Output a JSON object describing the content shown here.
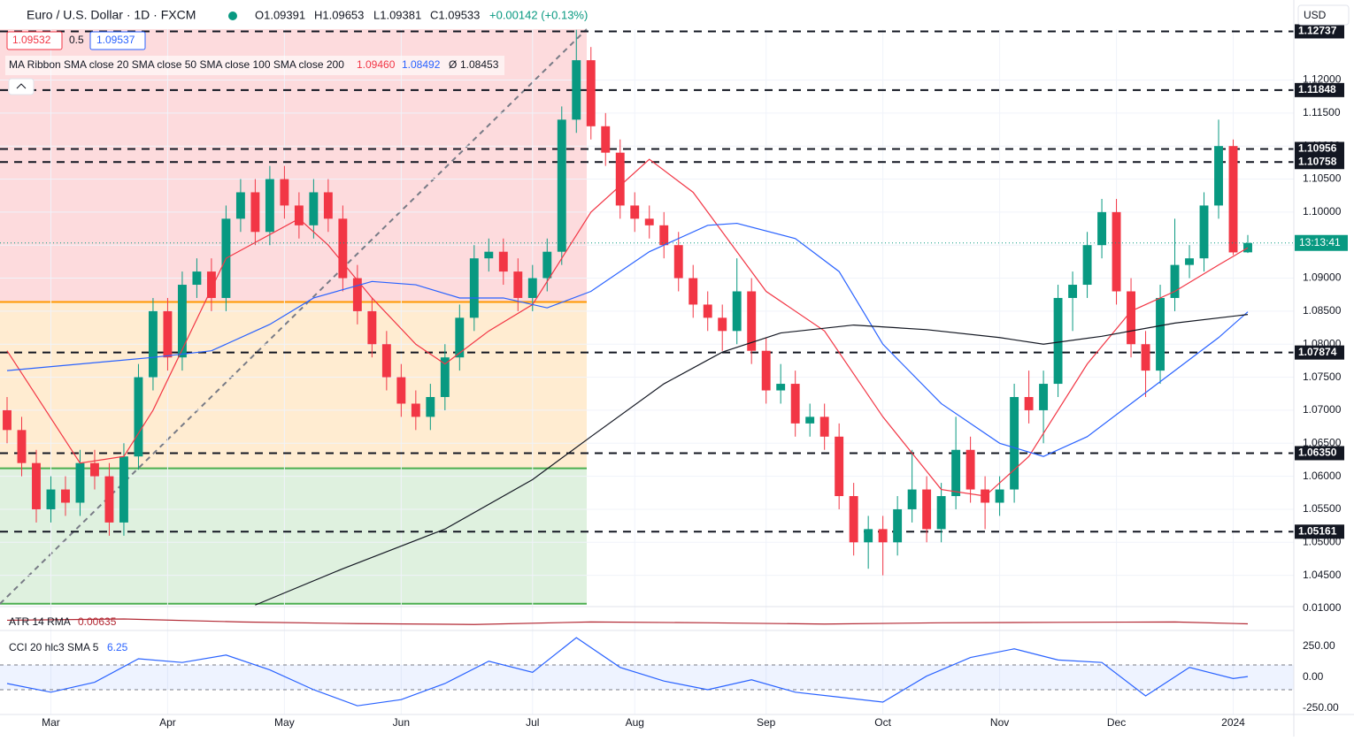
{
  "chart_data": {
    "type": "candlestick",
    "header": {
      "symbol": "Euro / U.S. Dollar · 1D · FXCM",
      "open": "O1.09391",
      "high": "H1.09653",
      "low": "L1.09381",
      "close": "C1.09533",
      "change": "+0.00142 (+0.13%)",
      "tool_labels": [
        "1.09532",
        "0.5",
        "1.09537"
      ],
      "ma_ribbon": "MA Ribbon SMA close 20 SMA close 50 SMA close 100 SMA close 200",
      "ma_values": [
        "1.09460",
        "1.08492",
        "Ø",
        "1.08453"
      ],
      "currency": "USD",
      "countdown": "13:13:41"
    },
    "categories": [
      null,
      null,
      null,
      "Mar",
      null,
      null,
      null,
      null,
      null,
      null,
      null,
      "Apr",
      null,
      null,
      null,
      null,
      null,
      null,
      null,
      "May",
      null,
      null,
      null,
      null,
      null,
      null,
      null,
      "Jun",
      null,
      null,
      null,
      null,
      null,
      null,
      null,
      null,
      "Jul",
      null,
      null,
      null,
      null,
      null,
      null,
      "Aug",
      null,
      null,
      null,
      null,
      null,
      null,
      null,
      null,
      "Sep",
      null,
      null,
      null,
      null,
      null,
      null,
      null,
      "Oct",
      null,
      null,
      null,
      null,
      null,
      null,
      null,
      "Nov",
      null,
      null,
      null,
      null,
      null,
      null,
      null,
      "Dec",
      null,
      null,
      null,
      null,
      null,
      null,
      null,
      "2024",
      null
    ],
    "ohlc": [
      [
        1.07,
        1.072,
        1.065,
        1.067
      ],
      [
        1.067,
        1.069,
        1.06,
        1.062
      ],
      [
        1.062,
        1.064,
        1.053,
        1.055
      ],
      [
        1.055,
        1.06,
        1.053,
        1.058
      ],
      [
        1.058,
        1.06,
        1.054,
        1.056
      ],
      [
        1.056,
        1.064,
        1.054,
        1.062
      ],
      [
        1.062,
        1.064,
        1.058,
        1.06
      ],
      [
        1.06,
        1.062,
        1.051,
        1.053
      ],
      [
        1.053,
        1.065,
        1.051,
        1.063
      ],
      [
        1.063,
        1.077,
        1.061,
        1.075
      ],
      [
        1.075,
        1.087,
        1.073,
        1.085
      ],
      [
        1.085,
        1.087,
        1.076,
        1.078
      ],
      [
        1.078,
        1.091,
        1.076,
        1.089
      ],
      [
        1.089,
        1.093,
        1.087,
        1.091
      ],
      [
        1.091,
        1.093,
        1.085,
        1.087
      ],
      [
        1.087,
        1.101,
        1.085,
        1.099
      ],
      [
        1.099,
        1.105,
        1.097,
        1.103
      ],
      [
        1.103,
        1.105,
        1.095,
        1.097
      ],
      [
        1.097,
        1.107,
        1.095,
        1.105
      ],
      [
        1.105,
        1.107,
        1.099,
        1.101
      ],
      [
        1.101,
        1.103,
        1.096,
        1.098
      ],
      [
        1.098,
        1.105,
        1.096,
        1.103
      ],
      [
        1.103,
        1.105,
        1.097,
        1.099
      ],
      [
        1.099,
        1.101,
        1.088,
        1.09
      ],
      [
        1.09,
        1.092,
        1.083,
        1.085
      ],
      [
        1.085,
        1.087,
        1.078,
        1.08
      ],
      [
        1.08,
        1.082,
        1.073,
        1.075
      ],
      [
        1.075,
        1.077,
        1.069,
        1.071
      ],
      [
        1.071,
        1.073,
        1.067,
        1.069
      ],
      [
        1.069,
        1.074,
        1.067,
        1.072
      ],
      [
        1.072,
        1.08,
        1.07,
        1.078
      ],
      [
        1.078,
        1.086,
        1.076,
        1.084
      ],
      [
        1.084,
        1.095,
        1.082,
        1.093
      ],
      [
        1.093,
        1.096,
        1.091,
        1.094
      ],
      [
        1.094,
        1.096,
        1.089,
        1.091
      ],
      [
        1.091,
        1.093,
        1.085,
        1.087
      ],
      [
        1.087,
        1.092,
        1.085,
        1.09
      ],
      [
        1.09,
        1.096,
        1.088,
        1.094
      ],
      [
        1.094,
        1.116,
        1.092,
        1.114
      ],
      [
        1.114,
        1.1276,
        1.112,
        1.123
      ],
      [
        1.123,
        1.125,
        1.111,
        1.113
      ],
      [
        1.113,
        1.115,
        1.107,
        1.109
      ],
      [
        1.109,
        1.111,
        1.099,
        1.101
      ],
      [
        1.101,
        1.103,
        1.097,
        1.099
      ],
      [
        1.099,
        1.101,
        1.096,
        1.098
      ],
      [
        1.098,
        1.1,
        1.093,
        1.095
      ],
      [
        1.095,
        1.097,
        1.088,
        1.09
      ],
      [
        1.09,
        1.092,
        1.084,
        1.086
      ],
      [
        1.086,
        1.088,
        1.082,
        1.084
      ],
      [
        1.084,
        1.086,
        1.079,
        1.082
      ],
      [
        1.082,
        1.093,
        1.08,
        1.088
      ],
      [
        1.088,
        1.09,
        1.077,
        1.079
      ],
      [
        1.079,
        1.081,
        1.071,
        1.073
      ],
      [
        1.073,
        1.077,
        1.071,
        1.074
      ],
      [
        1.074,
        1.076,
        1.066,
        1.068
      ],
      [
        1.068,
        1.071,
        1.066,
        1.069
      ],
      [
        1.069,
        1.071,
        1.064,
        1.066
      ],
      [
        1.066,
        1.068,
        1.055,
        1.057
      ],
      [
        1.057,
        1.059,
        1.048,
        1.05
      ],
      [
        1.05,
        1.054,
        1.046,
        1.052
      ],
      [
        1.052,
        1.054,
        1.045,
        1.05
      ],
      [
        1.05,
        1.057,
        1.048,
        1.055
      ],
      [
        1.055,
        1.064,
        1.053,
        1.058
      ],
      [
        1.058,
        1.06,
        1.05,
        1.052
      ],
      [
        1.052,
        1.059,
        1.05,
        1.057
      ],
      [
        1.057,
        1.069,
        1.055,
        1.064
      ],
      [
        1.064,
        1.066,
        1.056,
        1.058
      ],
      [
        1.058,
        1.06,
        1.052,
        1.056
      ],
      [
        1.056,
        1.06,
        1.054,
        1.058
      ],
      [
        1.058,
        1.074,
        1.056,
        1.072
      ],
      [
        1.072,
        1.076,
        1.068,
        1.07
      ],
      [
        1.07,
        1.076,
        1.065,
        1.074
      ],
      [
        1.074,
        1.089,
        1.072,
        1.087
      ],
      [
        1.087,
        1.091,
        1.082,
        1.089
      ],
      [
        1.089,
        1.097,
        1.087,
        1.095
      ],
      [
        1.095,
        1.102,
        1.093,
        1.1
      ],
      [
        1.1,
        1.102,
        1.086,
        1.088
      ],
      [
        1.088,
        1.09,
        1.078,
        1.08
      ],
      [
        1.08,
        1.082,
        1.072,
        1.076
      ],
      [
        1.076,
        1.089,
        1.074,
        1.087
      ],
      [
        1.087,
        1.099,
        1.085,
        1.092
      ],
      [
        1.092,
        1.095,
        1.09,
        1.093
      ],
      [
        1.093,
        1.103,
        1.091,
        1.101
      ],
      [
        1.101,
        1.114,
        1.099,
        1.11
      ],
      [
        1.11,
        1.111,
        1.0935,
        1.0939
      ],
      [
        1.09391,
        1.09653,
        1.09381,
        1.09533
      ]
    ],
    "up_color": "#089981",
    "down_color": "#f23645",
    "ylim": [
      1.0404,
      1.1277
    ],
    "yticks": [
      {
        "value": 1.045,
        "label": "1.04500"
      },
      {
        "value": 1.05,
        "label": "1.05000"
      },
      {
        "value": 1.055,
        "label": "1.05500"
      },
      {
        "value": 1.06,
        "label": "1.06000"
      },
      {
        "value": 1.065,
        "label": "1.06500"
      },
      {
        "value": 1.07,
        "label": "1.07000"
      },
      {
        "value": 1.075,
        "label": "1.07500"
      },
      {
        "value": 1.08,
        "label": "1.08000"
      },
      {
        "value": 1.085,
        "label": "1.08500"
      },
      {
        "value": 1.09,
        "label": "1.09000"
      },
      {
        "value": 1.095,
        "label": "1.09500"
      },
      {
        "value": 1.1,
        "label": "1.10000"
      },
      {
        "value": 1.105,
        "label": "1.10500"
      },
      {
        "value": 1.11,
        "label": "1.11000"
      },
      {
        "value": 1.115,
        "label": "1.11500"
      },
      {
        "value": 1.12,
        "label": "1.12000"
      }
    ],
    "levels": [
      {
        "value": 1.12737,
        "label": "1.12737"
      },
      {
        "value": 1.11848,
        "label": "1.11848"
      },
      {
        "value": 1.10956,
        "label": "1.10956"
      },
      {
        "value": 1.10758,
        "label": "1.10758"
      },
      {
        "value": 1.07874,
        "label": "1.07874"
      },
      {
        "value": 1.0635,
        "label": "1.06350"
      },
      {
        "value": 1.05161,
        "label": "1.05161"
      }
    ],
    "fib": [
      {
        "value": 1.1277,
        "color": "#f23645"
      },
      {
        "value": 1.0864,
        "color": "#ff9800"
      },
      {
        "value": 1.0612,
        "color": "#4caf50"
      },
      {
        "value": 1.0407,
        "color": "#4caf50"
      }
    ],
    "series": [
      {
        "name": "SMA 20",
        "color": "#f23645",
        "x": [
          0,
          5,
          8,
          10,
          15,
          20,
          22,
          25,
          28,
          30,
          33,
          36,
          40,
          44,
          47,
          52,
          56,
          60,
          64,
          67,
          70,
          74,
          77,
          80,
          83,
          85
        ],
        "values": [
          1.079,
          1.062,
          1.063,
          1.07,
          1.093,
          1.099,
          1.095,
          1.087,
          1.08,
          1.077,
          1.082,
          1.086,
          1.1,
          1.108,
          1.103,
          1.088,
          1.082,
          1.069,
          1.058,
          1.057,
          1.063,
          1.077,
          1.085,
          1.088,
          1.092,
          1.0946
        ]
      },
      {
        "name": "SMA 50",
        "color": "#2962ff",
        "x": [
          0,
          10,
          14,
          18,
          21,
          25,
          28,
          31,
          34,
          37,
          40,
          44,
          48,
          50,
          54,
          57,
          60,
          64,
          68,
          71,
          74,
          77,
          80,
          83,
          85
        ],
        "values": [
          1.076,
          1.078,
          1.079,
          1.083,
          1.087,
          1.0895,
          1.089,
          1.087,
          1.087,
          1.0855,
          1.088,
          1.094,
          1.098,
          1.0983,
          1.096,
          1.091,
          1.08,
          1.071,
          1.065,
          1.063,
          1.066,
          1.071,
          1.076,
          1.081,
          1.0849
        ]
      },
      {
        "name": "SMA 200",
        "color": "#131722",
        "x": [
          17,
          23,
          30,
          36,
          40,
          45,
          49,
          53,
          58,
          63,
          68,
          71,
          75,
          80,
          85
        ],
        "values": [
          1.0405,
          1.046,
          1.052,
          1.0595,
          1.066,
          1.074,
          1.0788,
          1.0817,
          1.0829,
          1.0822,
          1.081,
          1.08,
          1.0812,
          1.0832,
          1.0845
        ]
      }
    ],
    "atr": {
      "title": "ATR 14 RMA",
      "last": "0.00635",
      "color": "#b22833",
      "x": [
        0,
        8,
        16,
        24,
        32,
        40,
        48,
        56,
        64,
        72,
        80,
        85
      ],
      "values": [
        0.0072,
        0.0075,
        0.0068,
        0.0064,
        0.0062,
        0.0068,
        0.0066,
        0.0063,
        0.0066,
        0.0067,
        0.0068,
        0.00635
      ],
      "ylim": [
        0.005,
        0.0102
      ],
      "yticks": [
        {
          "value": 0.01,
          "label": "0.01000"
        }
      ]
    },
    "cci": {
      "title": "CCI 20 hlc3 SMA 5",
      "last": "6.25",
      "color": "#2962ff",
      "x": [
        0,
        3,
        6,
        9,
        12,
        15,
        18,
        21,
        24,
        27,
        30,
        33,
        36,
        39,
        42,
        45,
        48,
        51,
        54,
        57,
        60,
        63,
        66,
        69,
        72,
        75,
        78,
        81,
        84,
        85
      ],
      "values": [
        -50,
        -120,
        -40,
        150,
        120,
        180,
        60,
        -100,
        -230,
        -180,
        -50,
        130,
        40,
        320,
        80,
        -30,
        -100,
        -20,
        -120,
        -160,
        -200,
        10,
        160,
        230,
        140,
        120,
        -150,
        80,
        -10,
        6.25
      ],
      "ylim": [
        -300,
        364
      ],
      "band": [
        -100,
        100
      ],
      "yticks": [
        {
          "value": 250,
          "label": "250.00"
        },
        {
          "value": 0,
          "label": "0.00"
        },
        {
          "value": -250,
          "label": "-250.00"
        }
      ]
    }
  }
}
